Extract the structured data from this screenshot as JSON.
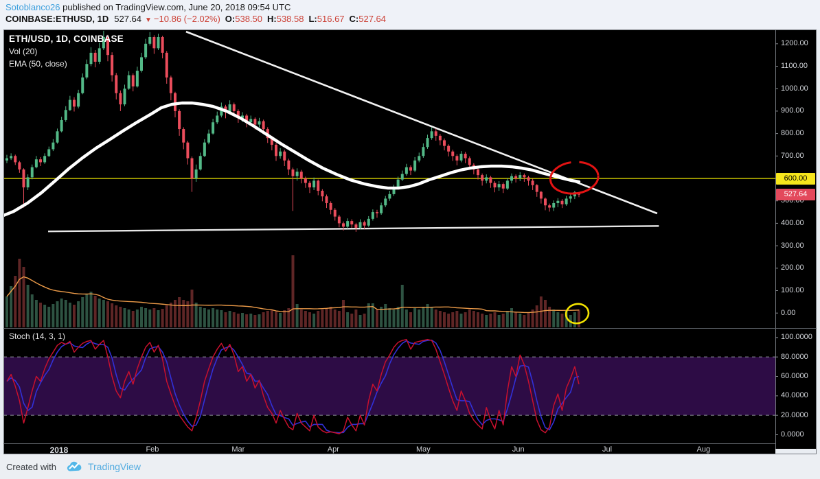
{
  "header": {
    "author": "Sotoblanco26",
    "published": " published on TradingView.com, June 20, 2018 09:54 UTC",
    "symbol": "COINBASE:ETHUSD, 1D",
    "last": "527.64",
    "change": "−10.86 (−2.02%)",
    "o_label": "O:",
    "o_value": "538.50",
    "h_label": "H:",
    "h_value": "538.58",
    "l_label": "L:",
    "l_value": "516.67",
    "c_label": "C:",
    "c_value": "527.64"
  },
  "legend": {
    "title": "ETH/USD, 1D, COINBASE",
    "vol": "Vol (20)",
    "ema": "EMA (50, close)",
    "stoch": "Stoch (14, 3, 1)"
  },
  "footer": {
    "created_with": "Created with",
    "brand": "TradingView"
  },
  "colors": {
    "up": "#53b987",
    "down": "#eb4d5c",
    "vol_up": "#2e5342",
    "vol_down": "#5f2626",
    "vol_ma": "#eb9a48",
    "ema": "#ffffff",
    "trendline": "#f2f2f2",
    "support": "#e8e8e8",
    "level_line": "#efe900",
    "stoch_k_blue": "#3230d8",
    "stoch_d_red": "#c8102e",
    "stoch_band": "#2d0c45",
    "stoch_dashed": "#90939c",
    "axis_text": "#d5d8dd",
    "tick_mark": "#878a90",
    "tag_yellow_bg": "#f6e61c",
    "tag_yellow_text": "#000000",
    "tag_red_bg": "#e3495c",
    "tag_red_text": "#ffffff",
    "red_circle": "#e31313",
    "yellow_circle": "#f3e300",
    "pane_border": "#75797f",
    "chart_bg": "#000000"
  },
  "chart_data": {
    "type": "candlestick",
    "title": "ETH/USD, 1D, COINBASE",
    "symbol": "ETH/USD",
    "interval": "1D",
    "exchange": "COINBASE",
    "indicators": [
      "Vol (20)",
      "EMA (50, close)",
      "Stoch (14, 3, 1)"
    ],
    "last_values": {
      "open": 538.5,
      "high": 538.58,
      "low": 516.67,
      "close": 527.64,
      "change": -10.86,
      "change_pct": -2.02
    },
    "first_open": 680,
    "candles_hlc": [
      [
        705,
        668,
        690
      ],
      [
        712,
        682,
        700
      ],
      [
        706,
        660,
        672
      ],
      [
        678,
        625,
        640
      ],
      [
        645,
        470,
        560
      ],
      [
        618,
        548,
        605
      ],
      [
        662,
        596,
        650
      ],
      [
        700,
        645,
        685
      ],
      [
        695,
        655,
        672
      ],
      [
        712,
        665,
        700
      ],
      [
        742,
        695,
        730
      ],
      [
        775,
        722,
        760
      ],
      [
        822,
        755,
        810
      ],
      [
        875,
        805,
        860
      ],
      [
        922,
        852,
        905
      ],
      [
        968,
        900,
        950
      ],
      [
        962,
        898,
        920
      ],
      [
        995,
        912,
        980
      ],
      [
        1068,
        975,
        1050
      ],
      [
        1130,
        1042,
        1110
      ],
      [
        1185,
        1100,
        1160
      ],
      [
        1172,
        1095,
        1120
      ],
      [
        1205,
        1110,
        1180
      ],
      [
        1258,
        1172,
        1230
      ],
      [
        1240,
        1122,
        1150
      ],
      [
        1162,
        1032,
        1060
      ],
      [
        1070,
        952,
        980
      ],
      [
        992,
        900,
        930
      ],
      [
        1018,
        922,
        1000
      ],
      [
        1078,
        995,
        1060
      ],
      [
        1068,
        988,
        1010
      ],
      [
        1098,
        1005,
        1080
      ],
      [
        1160,
        1072,
        1140
      ],
      [
        1222,
        1132,
        1200
      ],
      [
        1252,
        1192,
        1230
      ],
      [
        1238,
        1155,
        1180
      ],
      [
        1245,
        1172,
        1230
      ],
      [
        1236,
        1135,
        1160
      ],
      [
        1168,
        1022,
        1050
      ],
      [
        1058,
        948,
        980
      ],
      [
        986,
        872,
        900
      ],
      [
        908,
        790,
        820
      ],
      [
        828,
        730,
        760
      ],
      [
        768,
        662,
        690
      ],
      [
        698,
        540,
        600
      ],
      [
        662,
        585,
        640
      ],
      [
        715,
        635,
        700
      ],
      [
        775,
        695,
        760
      ],
      [
        818,
        752,
        800
      ],
      [
        866,
        795,
        850
      ],
      [
        898,
        842,
        880
      ],
      [
        938,
        872,
        920
      ],
      [
        928,
        868,
        895
      ],
      [
        948,
        888,
        930
      ],
      [
        938,
        882,
        900
      ],
      [
        908,
        848,
        870
      ],
      [
        895,
        852,
        880
      ],
      [
        888,
        828,
        850
      ],
      [
        880,
        838,
        865
      ],
      [
        872,
        818,
        840
      ],
      [
        870,
        828,
        855
      ],
      [
        862,
        798,
        820
      ],
      [
        828,
        758,
        780
      ],
      [
        790,
        725,
        750
      ],
      [
        758,
        678,
        700
      ],
      [
        735,
        688,
        720
      ],
      [
        728,
        655,
        680
      ],
      [
        688,
        615,
        640
      ],
      [
        648,
        455,
        610
      ],
      [
        645,
        590,
        630
      ],
      [
        638,
        578,
        600
      ],
      [
        608,
        558,
        580
      ],
      [
        588,
        535,
        560
      ],
      [
        604,
        548,
        590
      ],
      [
        595,
        525,
        545
      ],
      [
        552,
        498,
        520
      ],
      [
        528,
        468,
        490
      ],
      [
        498,
        440,
        460
      ],
      [
        468,
        412,
        430
      ],
      [
        438,
        382,
        400
      ],
      [
        408,
        368,
        385
      ],
      [
        422,
        376,
        410
      ],
      [
        418,
        380,
        395
      ],
      [
        402,
        362,
        380
      ],
      [
        418,
        372,
        405
      ],
      [
        412,
        375,
        390
      ],
      [
        432,
        384,
        420
      ],
      [
        462,
        412,
        450
      ],
      [
        460,
        425,
        445
      ],
      [
        492,
        438,
        480
      ],
      [
        522,
        472,
        510
      ],
      [
        545,
        500,
        530
      ],
      [
        572,
        522,
        560
      ],
      [
        608,
        552,
        595
      ],
      [
        635,
        588,
        620
      ],
      [
        665,
        612,
        650
      ],
      [
        658,
        615,
        635
      ],
      [
        695,
        628,
        680
      ],
      [
        715,
        672,
        700
      ],
      [
        756,
        692,
        740
      ],
      [
        795,
        732,
        780
      ],
      [
        828,
        772,
        810
      ],
      [
        822,
        768,
        790
      ],
      [
        798,
        748,
        770
      ],
      [
        778,
        725,
        745
      ],
      [
        752,
        698,
        720
      ],
      [
        728,
        678,
        700
      ],
      [
        708,
        658,
        680
      ],
      [
        722,
        672,
        710
      ],
      [
        718,
        668,
        690
      ],
      [
        698,
        638,
        660
      ],
      [
        668,
        618,
        640
      ],
      [
        648,
        595,
        615
      ],
      [
        622,
        568,
        590
      ],
      [
        618,
        578,
        605
      ],
      [
        612,
        558,
        580
      ],
      [
        588,
        538,
        560
      ],
      [
        588,
        545,
        575
      ],
      [
        582,
        535,
        555
      ],
      [
        602,
        548,
        590
      ],
      [
        622,
        578,
        610
      ],
      [
        618,
        582,
        600
      ],
      [
        628,
        588,
        615
      ],
      [
        622,
        585,
        605
      ],
      [
        612,
        568,
        590
      ],
      [
        598,
        548,
        570
      ],
      [
        575,
        518,
        540
      ],
      [
        545,
        488,
        510
      ],
      [
        515,
        458,
        480
      ],
      [
        488,
        452,
        470
      ],
      [
        502,
        455,
        490
      ],
      [
        512,
        472,
        500
      ],
      [
        508,
        468,
        485
      ],
      [
        522,
        478,
        510
      ],
      [
        532,
        492,
        520
      ],
      [
        545,
        508,
        538.5
      ],
      [
        538.58,
        516.67,
        527.64
      ]
    ],
    "volumes": [
      45,
      60,
      75,
      100,
      88,
      62,
      48,
      40,
      36,
      33,
      30,
      34,
      38,
      42,
      40,
      36,
      33,
      38,
      44,
      48,
      52,
      46,
      42,
      40,
      38,
      35,
      32,
      30,
      28,
      26,
      24,
      26,
      30,
      28,
      26,
      28,
      25,
      27,
      32,
      36,
      40,
      44,
      40,
      38,
      55,
      36,
      30,
      28,
      26,
      28,
      26,
      25,
      22,
      24,
      22,
      20,
      21,
      19,
      20,
      18,
      19,
      22,
      24,
      26,
      23,
      21,
      25,
      28,
      105,
      34,
      26,
      24,
      22,
      20,
      24,
      26,
      28,
      30,
      26,
      24,
      40,
      22,
      20,
      26,
      18,
      20,
      35,
      35,
      26,
      30,
      34,
      28,
      26,
      30,
      62,
      26,
      22,
      28,
      26,
      30,
      34,
      30,
      26,
      24,
      22,
      20,
      22,
      24,
      20,
      22,
      26,
      24,
      22,
      20,
      18,
      20,
      22,
      18,
      20,
      24,
      28,
      22,
      20,
      18,
      22,
      26,
      32,
      45,
      40,
      30,
      26,
      22,
      20,
      24,
      18,
      22,
      26
    ],
    "volume_ma_period": 20,
    "stoch_fast": [
      55,
      62,
      50,
      35,
      12,
      28,
      45,
      60,
      55,
      68,
      78,
      85,
      92,
      95,
      93,
      96,
      85,
      90,
      94,
      96,
      97,
      88,
      93,
      97,
      80,
      60,
      45,
      38,
      55,
      65,
      52,
      68,
      80,
      90,
      95,
      85,
      92,
      78,
      55,
      42,
      30,
      20,
      14,
      8,
      4,
      18,
      35,
      55,
      68,
      80,
      88,
      94,
      86,
      93,
      82,
      65,
      70,
      55,
      62,
      48,
      56,
      40,
      28,
      22,
      12,
      25,
      16,
      8,
      5,
      22,
      12,
      8,
      4,
      20,
      8,
      4,
      2,
      3,
      2,
      1,
      4,
      18,
      10,
      4,
      20,
      10,
      35,
      52,
      45,
      62,
      75,
      82,
      90,
      95,
      97,
      98,
      88,
      95,
      96,
      97,
      98,
      97,
      88,
      75,
      62,
      48,
      35,
      25,
      45,
      35,
      22,
      15,
      10,
      6,
      28,
      15,
      6,
      25,
      10,
      45,
      70,
      60,
      82,
      72,
      55,
      35,
      15,
      5,
      2,
      8,
      30,
      42,
      25,
      48,
      58,
      70,
      52
    ],
    "stoch_smooth_period": 3,
    "stoch_band": [
      20,
      80
    ],
    "ema50": [
      [
        -1.6,
        429
      ],
      [
        1.6,
        453
      ],
      [
        4.9,
        490
      ],
      [
        8.2,
        536
      ],
      [
        11.4,
        588
      ],
      [
        14.7,
        643
      ],
      [
        18,
        692
      ],
      [
        21.2,
        735
      ],
      [
        24.5,
        774
      ],
      [
        27.8,
        814
      ],
      [
        31,
        851
      ],
      [
        34.3,
        887
      ],
      [
        36.7,
        915
      ],
      [
        39.2,
        930
      ],
      [
        41.6,
        936
      ],
      [
        44.1,
        936
      ],
      [
        46.5,
        930
      ],
      [
        49,
        921
      ],
      [
        52.2,
        900
      ],
      [
        55.5,
        869
      ],
      [
        58.8,
        832
      ],
      [
        62,
        793
      ],
      [
        65.3,
        753
      ],
      [
        68.6,
        716
      ],
      [
        71.8,
        680
      ],
      [
        75.1,
        646
      ],
      [
        78.4,
        618
      ],
      [
        81.6,
        594
      ],
      [
        84.9,
        576
      ],
      [
        88.2,
        563
      ],
      [
        90.6,
        557
      ],
      [
        93.1,
        557
      ],
      [
        95.5,
        563
      ],
      [
        98,
        576
      ],
      [
        100.4,
        594
      ],
      [
        102.9,
        609
      ],
      [
        105.3,
        624
      ],
      [
        107.8,
        637
      ],
      [
        110.2,
        646
      ],
      [
        112.7,
        652
      ],
      [
        115.1,
        655
      ],
      [
        117.6,
        655
      ],
      [
        120,
        652
      ],
      [
        122.4,
        646
      ],
      [
        124.9,
        637
      ],
      [
        127.3,
        624
      ],
      [
        129.8,
        612
      ],
      [
        132.2,
        600
      ],
      [
        134.2,
        591
      ],
      [
        136,
        585
      ]
    ],
    "price_axis": {
      "tick_labels": [
        "1200.00",
        "1100.00",
        "1000.00",
        "900.00",
        "800.00",
        "700.00",
        "600.00",
        "500.00",
        "400.00",
        "300.00",
        "200.00",
        "100.00",
        "0.00"
      ],
      "tags": [
        {
          "text": "600.00",
          "price": 600,
          "bg": "tag_yellow_bg",
          "fg": "tag_yellow_text"
        },
        {
          "text": "527.64",
          "price": 527.64,
          "bg": "tag_red_bg",
          "fg": "tag_red_text"
        }
      ]
    },
    "stoch_axis": {
      "tick_labels": [
        "100.0000",
        "80.0000",
        "60.0000",
        "40.0000",
        "20.0000",
        "0.0000"
      ]
    },
    "time_axis": [
      {
        "label": "2018",
        "t": 12.4,
        "bold": true
      },
      {
        "label": "Feb",
        "t": 34.6
      },
      {
        "label": "Mar",
        "t": 55.0
      },
      {
        "label": "Apr",
        "t": 77.6
      },
      {
        "label": "May",
        "t": 99.0
      },
      {
        "label": "Jun",
        "t": 121.6
      },
      {
        "label": "Jul",
        "t": 142.7
      },
      {
        "label": "Aug",
        "t": 165.6
      }
    ],
    "annotations": {
      "level_line": {
        "price": 600
      },
      "trendline": {
        "t1": 42.6,
        "p1": 1254,
        "t2": 154.6,
        "p2": 444
      },
      "support": {
        "t1": 9.8,
        "p1": 364,
        "t2": 155,
        "p2": 388
      },
      "red_circle": {
        "t": 134.9,
        "p": 603,
        "rt": 5.7,
        "rp": 70
      },
      "yellow_circle": {
        "t": 135.6,
        "vol": 20,
        "rt": 2.7,
        "rv": 14
      }
    }
  }
}
